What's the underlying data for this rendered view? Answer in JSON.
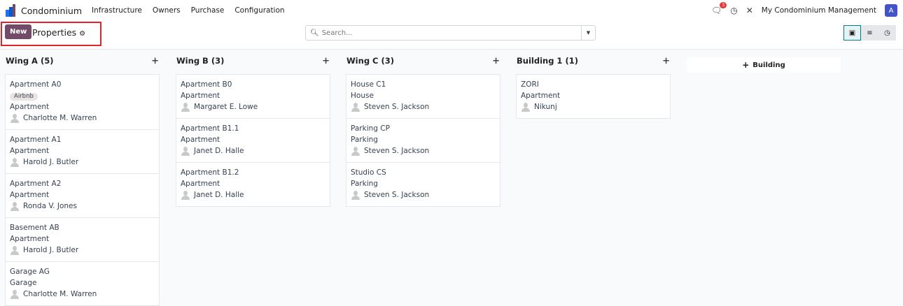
{
  "nav": {
    "brand": "Condominium",
    "menus": [
      "Infrastructure",
      "Owners",
      "Purchase",
      "Configuration"
    ],
    "message_count": "3",
    "company": "My Condominium Management",
    "avatar": "A",
    "icons": [
      "chat-icon",
      "clock-icon",
      "tools-icon"
    ]
  },
  "control": {
    "new_label": "New",
    "title": "Properties",
    "search_placeholder": "Search...",
    "views": [
      "kanban",
      "list",
      "activity"
    ],
    "active_view": "kanban"
  },
  "columns": [
    {
      "title": "Wing A (5)",
      "cards": [
        {
          "name": "Apartment A0",
          "tag": "Airbnb",
          "type": "Apartment",
          "owner": "Charlotte M. Warren"
        },
        {
          "name": "Apartment A1",
          "type": "Apartment",
          "owner": "Harold J. Butler"
        },
        {
          "name": "Apartment A2",
          "type": "Apartment",
          "owner": "Ronda V. Jones"
        },
        {
          "name": "Basement AB",
          "type": "Apartment",
          "owner": "Harold J. Butler"
        },
        {
          "name": "Garage AG",
          "type": "Garage",
          "owner": "Charlotte M. Warren"
        }
      ]
    },
    {
      "title": "Wing B (3)",
      "cards": [
        {
          "name": "Apartment B0",
          "type": "Apartment",
          "owner": "Margaret E. Lowe"
        },
        {
          "name": "Apartment B1.1",
          "type": "Apartment",
          "owner": "Janet D. Halle"
        },
        {
          "name": "Apartment B1.2",
          "type": "Apartment",
          "owner": "Janet D. Halle"
        }
      ]
    },
    {
      "title": "Wing C (3)",
      "cards": [
        {
          "name": "House C1",
          "type": "House",
          "owner": "Steven S. Jackson"
        },
        {
          "name": "Parking CP",
          "type": "Parking",
          "owner": "Steven S. Jackson"
        },
        {
          "name": "Studio CS",
          "type": "Parking",
          "owner": "Steven S. Jackson"
        }
      ]
    },
    {
      "title": "Building 1 (1)",
      "cards": [
        {
          "name": "ZORI",
          "type": "Apartment",
          "owner": "Nikunj"
        }
      ]
    }
  ],
  "add_column_label": "Building",
  "colors": {
    "primary": "#714b67",
    "accent": "#017e84",
    "highlight": "#e0242c"
  }
}
